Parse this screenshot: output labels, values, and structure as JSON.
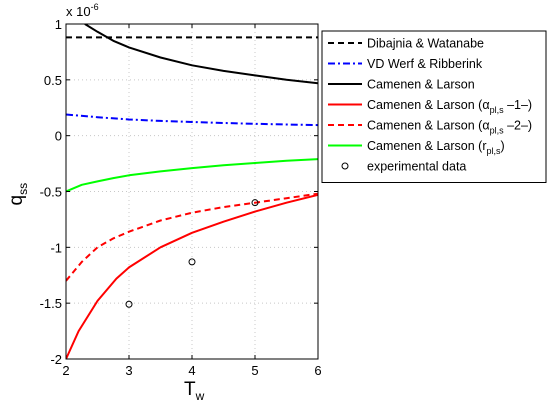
{
  "chart_data": {
    "type": "line",
    "xlabel": "T",
    "xlabel_sub": "w",
    "ylabel": "q",
    "ylabel_sub": "ss",
    "multiplier": {
      "base": "x 10",
      "exp": "-6"
    },
    "xlim": [
      2,
      6
    ],
    "ylim": [
      -2,
      1
    ],
    "xticks": [
      2,
      3,
      4,
      5,
      6
    ],
    "yticks": [
      -2,
      -1.5,
      -1,
      -0.5,
      0,
      0.5,
      1
    ],
    "grid": true,
    "legend_position": "outside-right-top",
    "series": [
      {
        "name": "Dibajnia & Watanabe",
        "color": "#000000",
        "style": "dashed",
        "x": [
          2,
          6
        ],
        "y": [
          0.88,
          0.88
        ]
      },
      {
        "name": "VD Werf & Ribberink",
        "color": "#0000ff",
        "style": "dashdot",
        "x": [
          2,
          2.5,
          3,
          3.5,
          4,
          4.5,
          5,
          5.5,
          6
        ],
        "y": [
          0.19,
          0.165,
          0.145,
          0.132,
          0.122,
          0.113,
          0.106,
          0.1,
          0.095
        ]
      },
      {
        "name": "Camenen & Larson",
        "color": "#000000",
        "style": "solid",
        "x": [
          2.3,
          2.5,
          2.75,
          3,
          3.5,
          4,
          4.5,
          5,
          5.5,
          6
        ],
        "y": [
          1.0,
          0.93,
          0.85,
          0.79,
          0.7,
          0.63,
          0.58,
          0.54,
          0.5,
          0.47
        ]
      },
      {
        "name": "Camenen & Larson (α",
        "name_sub": "pl,s",
        "name_tail": " –1–)",
        "color": "#ff0000",
        "style": "solid",
        "x": [
          2,
          2.2,
          2.5,
          2.8,
          3,
          3.5,
          4,
          4.5,
          5,
          5.5,
          6
        ],
        "y": [
          -2.0,
          -1.75,
          -1.48,
          -1.28,
          -1.18,
          -1.0,
          -0.87,
          -0.77,
          -0.68,
          -0.6,
          -0.53
        ]
      },
      {
        "name": "Camenen & Larson (α",
        "name_sub": "pl,s",
        "name_tail": " –2–)",
        "color": "#ff0000",
        "style": "dashed",
        "x": [
          2,
          2.25,
          2.5,
          2.75,
          3,
          3.5,
          4,
          4.5,
          5,
          5.5,
          6
        ],
        "y": [
          -1.3,
          -1.13,
          -1.0,
          -0.92,
          -0.86,
          -0.76,
          -0.69,
          -0.64,
          -0.6,
          -0.56,
          -0.52
        ]
      },
      {
        "name": "Camenen & Larson (r",
        "name_sub": "pl,s",
        "name_tail": ")",
        "color": "#00ff00",
        "style": "solid",
        "x": [
          2,
          2.25,
          2.5,
          2.75,
          3,
          3.5,
          4,
          4.5,
          5,
          5.5,
          6
        ],
        "y": [
          -0.5,
          -0.44,
          -0.41,
          -0.38,
          -0.355,
          -0.32,
          -0.29,
          -0.265,
          -0.245,
          -0.225,
          -0.21
        ]
      },
      {
        "name": "experimental data",
        "color": "#000000",
        "style": "markers",
        "x": [
          3,
          4,
          5
        ],
        "y": [
          -1.51,
          -1.13,
          -0.6
        ]
      }
    ]
  }
}
